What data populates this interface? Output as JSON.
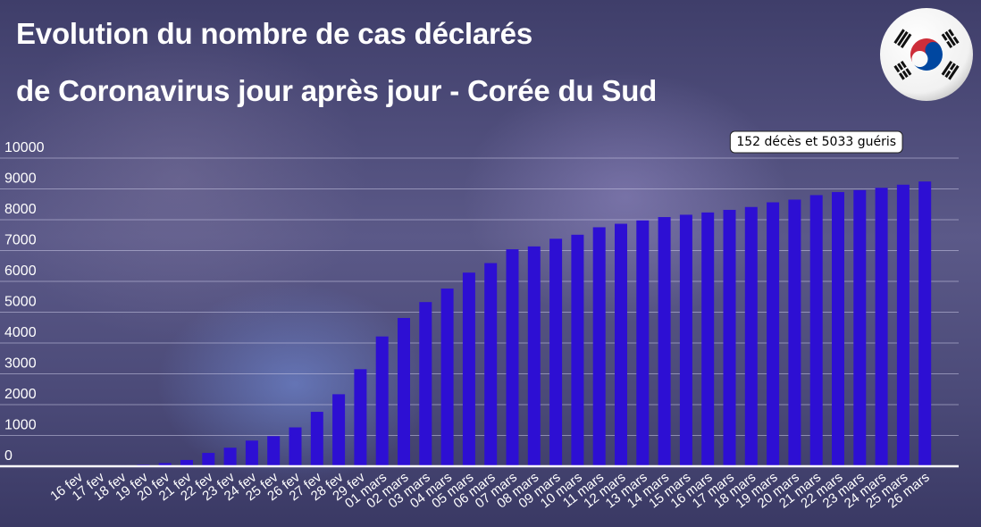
{
  "title_line1": "Evolution du nombre de cas déclarés",
  "title_line2": "de Coronavirus jour après jour - Corée du Sud",
  "flag_icon": "south-korea-flag-icon",
  "colors": {
    "bar": "#2d0fd3",
    "text": "#ffffff",
    "grid": "#c9c6e4"
  },
  "chart_data": {
    "type": "bar",
    "title": "Evolution du nombre de cas déclarés de Coronavirus jour après jour - Corée du Sud",
    "xlabel": "",
    "ylabel": "",
    "ylim": [
      0,
      10000
    ],
    "yticks": [
      0,
      1000,
      2000,
      3000,
      4000,
      5000,
      6000,
      7000,
      8000,
      9000,
      10000
    ],
    "grid": true,
    "categories": [
      "16 fev",
      "17 fev",
      "18 fev",
      "19 fev",
      "20 fev",
      "21 fev",
      "22 fev",
      "23 fev",
      "24 fev",
      "25 fev",
      "26 fev",
      "27 fev",
      "28 fev",
      "29 fev",
      "01 mars",
      "02 mars",
      "03 mars",
      "04 mars",
      "05 mars",
      "06 mars",
      "07 mars",
      "08 mars",
      "09 mars",
      "10 mars",
      "11 mars",
      "12 mars",
      "13 mars",
      "14 mars",
      "15 mars",
      "16 mars",
      "17 mars",
      "18 mars",
      "19 mars",
      "20 mars",
      "21 mars",
      "22 mars",
      "23 mars",
      "24 mars",
      "25 mars",
      "26 mars"
    ],
    "values": [
      29,
      30,
      31,
      51,
      104,
      204,
      433,
      602,
      833,
      977,
      1261,
      1766,
      2337,
      3150,
      4212,
      4812,
      5328,
      5766,
      6284,
      6593,
      7041,
      7134,
      7382,
      7513,
      7755,
      7869,
      7979,
      8086,
      8162,
      8236,
      8320,
      8413,
      8565,
      8652,
      8799,
      8897,
      8961,
      9037,
      9137,
      9241
    ],
    "annotations": [
      {
        "text": "152 décès et 5033 guéris",
        "category": "21 mars"
      }
    ]
  }
}
